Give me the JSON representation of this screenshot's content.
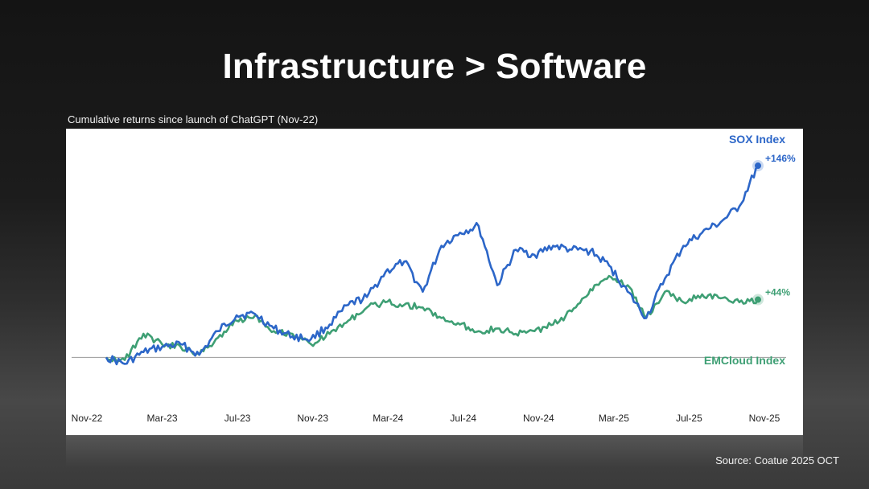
{
  "slide": {
    "title": "Infrastructure > Software",
    "source": "Source: Coatue 2025 OCT"
  },
  "chart_data": {
    "type": "line",
    "title": "Cumulative returns since launch of ChatGPT (Nov-22)",
    "xlabel": "",
    "ylabel": "",
    "x_ticks": [
      "Nov-22",
      "Mar-23",
      "Jul-23",
      "Nov-23",
      "Mar-24",
      "Jul-24",
      "Nov-24",
      "Mar-25",
      "Jul-25",
      "Nov-25"
    ],
    "xlim": [
      "2022-11",
      "2025-10"
    ],
    "ylim": [
      -20,
      165
    ],
    "grid": false,
    "legend": "inline-labels",
    "series": [
      {
        "name": "SOX Index",
        "color": "#2c66c8",
        "end_label": "+146%",
        "x": [
          "2022-11",
          "2022-12",
          "2023-01",
          "2023-02",
          "2023-03",
          "2023-04",
          "2023-05",
          "2023-06",
          "2023-07",
          "2023-08",
          "2023-09",
          "2023-10",
          "2023-11",
          "2023-12",
          "2024-01",
          "2024-02",
          "2024-03",
          "2024-04",
          "2024-05",
          "2024-06",
          "2024-07",
          "2024-08",
          "2024-09",
          "2024-10",
          "2024-11",
          "2024-12",
          "2025-01",
          "2025-02",
          "2025-03",
          "2025-04",
          "2025-05",
          "2025-06",
          "2025-07",
          "2025-08",
          "2025-09",
          "2025-10"
        ],
        "values": [
          0,
          -5,
          4,
          8,
          10,
          2,
          20,
          32,
          33,
          22,
          16,
          14,
          25,
          40,
          46,
          65,
          73,
          50,
          85,
          95,
          100,
          55,
          82,
          78,
          85,
          82,
          81,
          70,
          50,
          30,
          60,
          85,
          95,
          103,
          115,
          146
        ]
      },
      {
        "name": "EMCloud Index",
        "color": "#3e9f74",
        "end_label": "+44%",
        "x": [
          "2022-11",
          "2022-12",
          "2023-01",
          "2023-02",
          "2023-03",
          "2023-04",
          "2023-05",
          "2023-06",
          "2023-07",
          "2023-08",
          "2023-09",
          "2023-10",
          "2023-11",
          "2023-12",
          "2024-01",
          "2024-02",
          "2024-03",
          "2024-04",
          "2024-05",
          "2024-06",
          "2024-07",
          "2024-08",
          "2024-09",
          "2024-10",
          "2024-11",
          "2024-12",
          "2025-01",
          "2025-02",
          "2025-03",
          "2025-04",
          "2025-05",
          "2025-06",
          "2025-07",
          "2025-08",
          "2025-09",
          "2025-10"
        ],
        "values": [
          0,
          -2,
          18,
          10,
          8,
          2,
          15,
          28,
          32,
          20,
          18,
          10,
          18,
          28,
          38,
          42,
          40,
          38,
          30,
          25,
          20,
          22,
          18,
          20,
          25,
          35,
          52,
          62,
          55,
          30,
          50,
          42,
          48,
          45,
          42,
          44
        ]
      }
    ]
  }
}
